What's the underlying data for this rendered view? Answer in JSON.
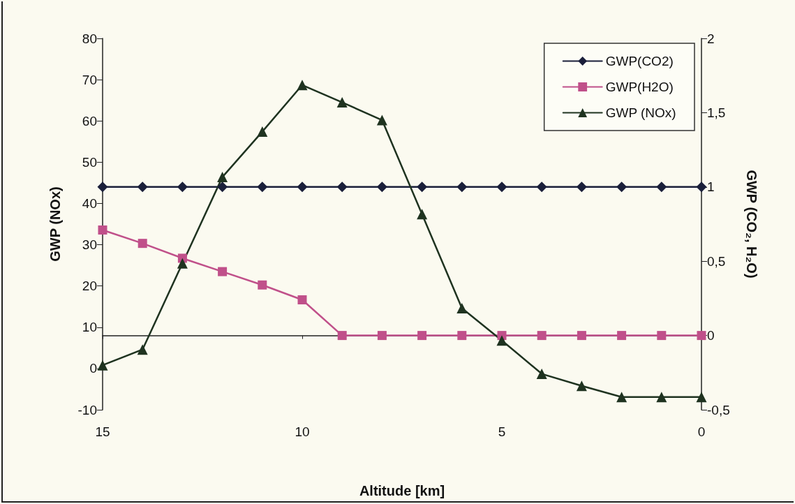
{
  "chart_data": {
    "type": "line",
    "xlabel": "Altitude [km]",
    "ylabel": "GWP (NOx)",
    "y2label": "GWP (CO₂, H₂O)",
    "x": [
      15,
      14,
      13,
      12,
      11,
      10,
      9,
      8,
      7,
      6,
      5,
      4,
      3,
      2,
      1,
      0
    ],
    "xlim": [
      15,
      0
    ],
    "xticks": [
      15,
      10,
      5,
      0
    ],
    "ylim": [
      -10,
      80
    ],
    "yticks": [
      -10,
      0,
      10,
      20,
      30,
      40,
      50,
      60,
      70,
      80
    ],
    "y2lim": [
      -0.5,
      2
    ],
    "y2ticks": [
      {
        "value": -0.5,
        "label": "-0,5"
      },
      {
        "value": 0,
        "label": "0"
      },
      {
        "value": 0.5,
        "label": "0,5"
      },
      {
        "value": 1,
        "label": "1"
      },
      {
        "value": 1.5,
        "label": "1,5"
      },
      {
        "value": 2,
        "label": "2"
      }
    ],
    "series": [
      {
        "name": "GWP(CO2)",
        "color": "#1a1f3a",
        "axis": "y2",
        "marker": "diamond",
        "values": [
          1,
          1,
          1,
          1,
          1,
          1,
          1,
          1,
          1,
          1,
          1,
          1,
          1,
          1,
          1,
          1
        ]
      },
      {
        "name": "GWP(H2O)",
        "color": "#c0508a",
        "axis": "y2",
        "marker": "square",
        "values": [
          0.71,
          0.62,
          0.52,
          0.43,
          0.34,
          0.24,
          0,
          0,
          0,
          0,
          0,
          0,
          0,
          0,
          0,
          0
        ]
      },
      {
        "name": "GWP (NOx)",
        "color": "#1f3320",
        "marker": "triangle",
        "values": [
          0.8,
          4.6,
          25.5,
          46.4,
          57.4,
          68.7,
          64.5,
          60.2,
          37.4,
          14.6,
          6.8,
          -1.3,
          -4.2,
          -6.9,
          -6.9,
          -6.9
        ]
      }
    ],
    "legend": "top right",
    "line_style": "solid"
  }
}
